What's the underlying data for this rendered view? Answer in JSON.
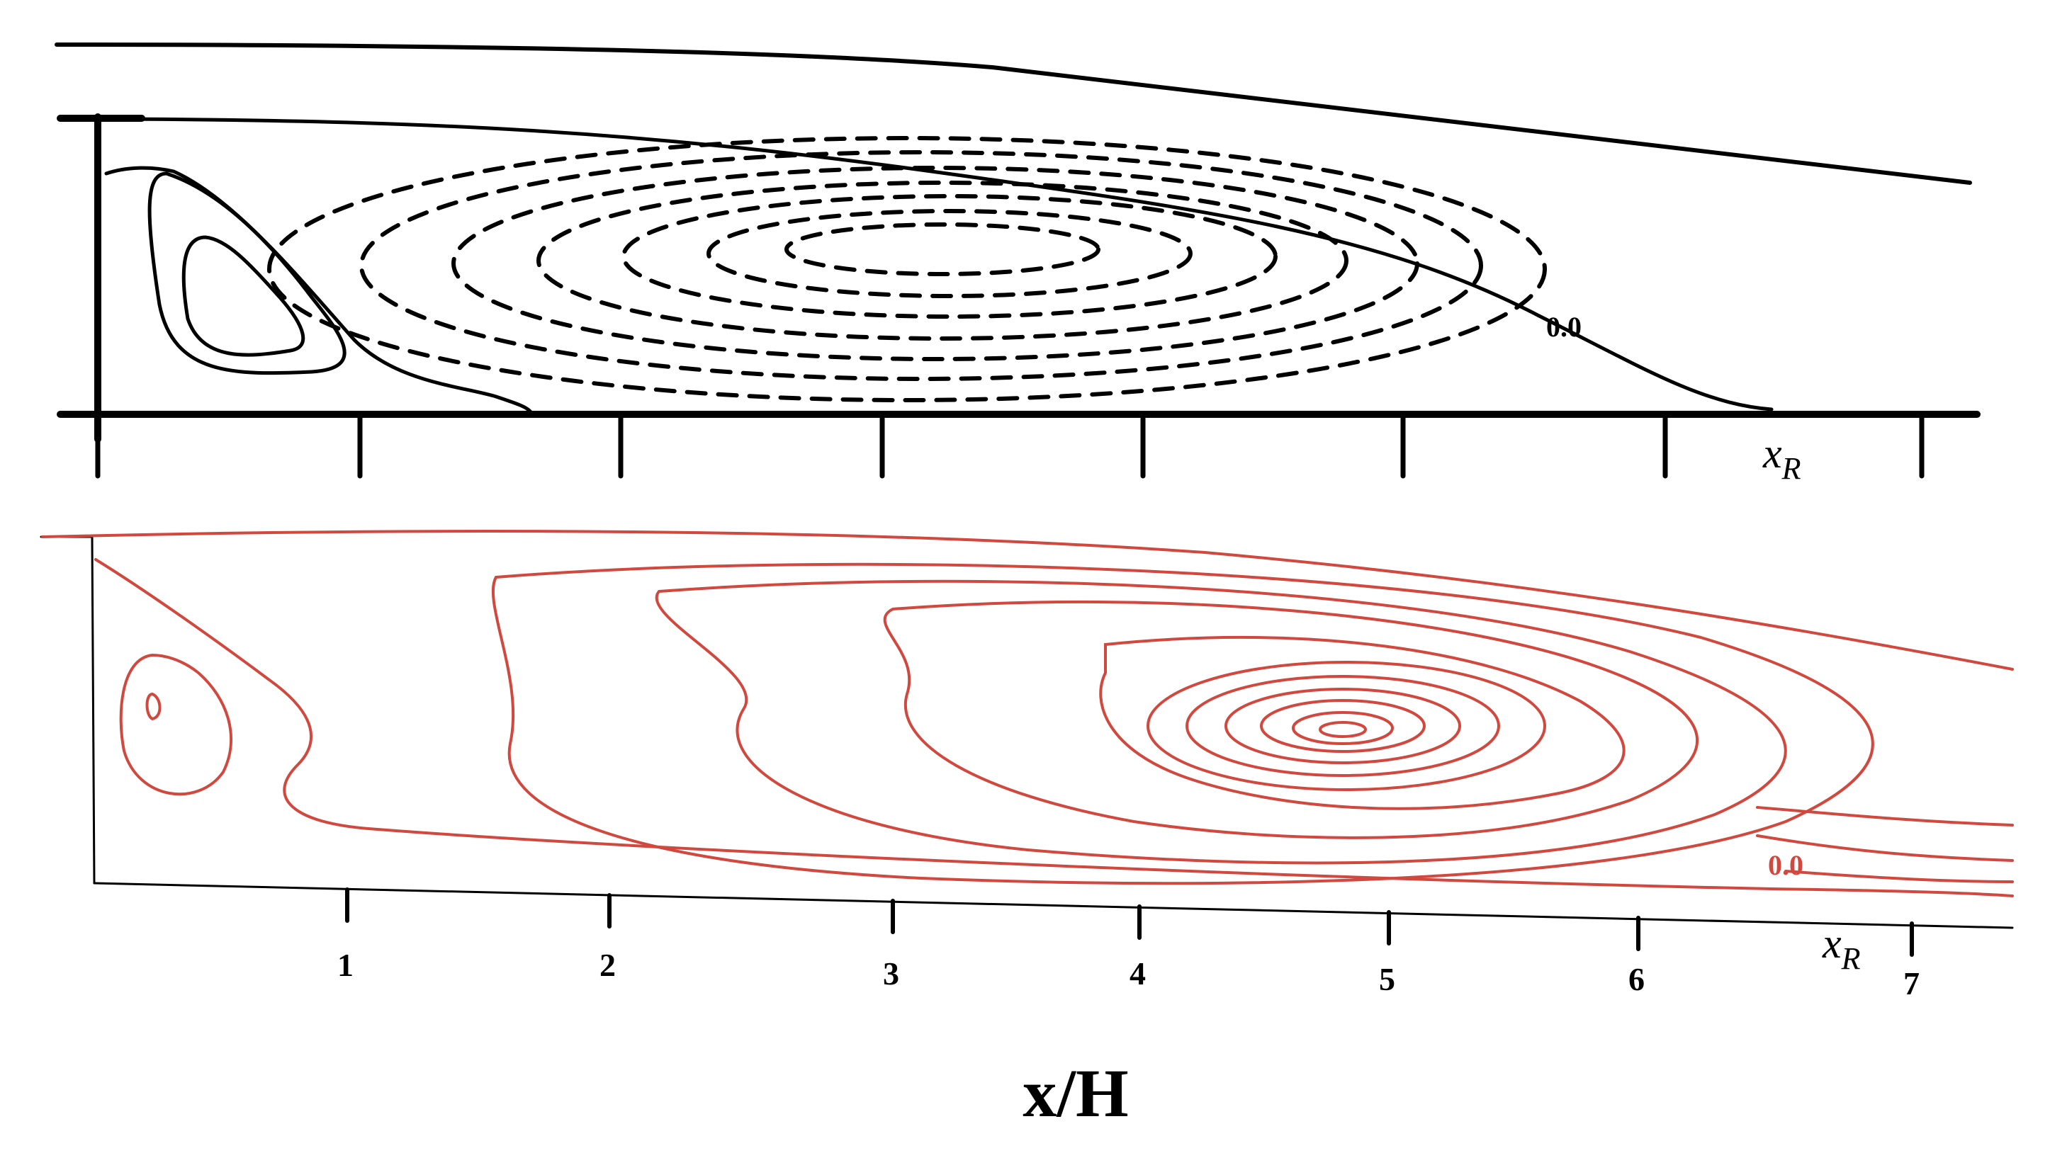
{
  "top_panel": {
    "contour_label": "0.0",
    "reattachment_label": "x",
    "reattachment_sub": "R"
  },
  "bottom_panel": {
    "contour_label": "0.0",
    "reattachment_label": "x",
    "reattachment_sub": "R",
    "tick_labels": [
      "1",
      "2",
      "3",
      "4",
      "5",
      "6",
      "7"
    ]
  },
  "axis": {
    "title": "x/H"
  },
  "colors": {
    "experiment": "#000000",
    "simulation": "#d1483e"
  }
}
